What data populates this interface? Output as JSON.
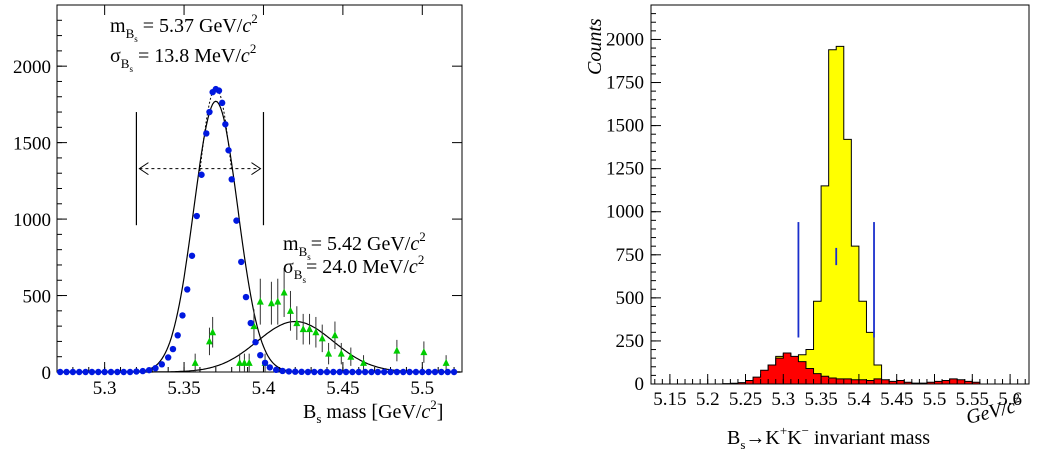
{
  "chart_data": [
    {
      "type": "scatter",
      "xlabel": {
        "prefix": "B",
        "sub": "s",
        "rest": " mass [GeV/",
        "unit_italic": "c",
        "sup": "2",
        "close": "]"
      },
      "xlim": [
        5.27,
        5.525
      ],
      "ylim": [
        0,
        2400
      ],
      "xticks": [
        5.3,
        5.35,
        5.4,
        5.45,
        5.5
      ],
      "xtick_labels": [
        "5.3",
        "5.35",
        "5.4",
        "5.45",
        "5.5"
      ],
      "yticks": [
        0,
        500,
        1000,
        1500,
        2000
      ],
      "ytick_labels": [
        "0",
        "500",
        "1000",
        "1500",
        "2000"
      ],
      "annotations": [
        {
          "name": "m",
          "sub": "B",
          "subsub": "s",
          "text": " =   5.37 GeV/",
          "unit_italic": "c",
          "sup": "2"
        },
        {
          "name": "σ",
          "sub": "B",
          "subsub": "s",
          "text": " =  13.8 MeV/",
          "unit_italic": "c",
          "sup": "2"
        },
        {
          "name": "m",
          "sub": "B",
          "subsub": "s",
          "text": "=  5.42 GeV/",
          "unit_italic": "c",
          "sup": "2"
        },
        {
          "name": "σ",
          "sub": "B",
          "subsub": "s",
          "text": "=  24.0 MeV/",
          "unit_italic": "c",
          "sup": "2"
        }
      ],
      "series": [
        {
          "color": "#0018e0",
          "marker": "circle",
          "x": [
            5.272,
            5.276,
            5.28,
            5.284,
            5.288,
            5.292,
            5.296,
            5.3,
            5.304,
            5.308,
            5.312,
            5.316,
            5.32,
            5.324,
            5.328,
            5.332,
            5.336,
            5.34,
            5.343,
            5.346,
            5.349,
            5.352,
            5.355,
            5.358,
            5.361,
            5.364,
            5.366,
            5.368,
            5.37,
            5.372,
            5.374,
            5.376,
            5.378,
            5.38,
            5.383,
            5.386,
            5.389,
            5.392,
            5.395,
            5.398,
            5.401,
            5.404,
            5.408,
            5.412,
            5.416,
            5.42,
            5.424,
            5.428,
            5.432,
            5.436,
            5.44,
            5.444,
            5.448,
            5.452,
            5.456,
            5.46,
            5.464,
            5.468,
            5.472,
            5.476,
            5.48,
            5.484,
            5.488,
            5.492,
            5.496,
            5.5,
            5.504,
            5.508,
            5.512,
            5.516,
            5.52
          ],
          "y": [
            0,
            0,
            0,
            0,
            0,
            0,
            0,
            0,
            0,
            0,
            0,
            0,
            3,
            6,
            12,
            25,
            50,
            95,
            150,
            240,
            370,
            540,
            760,
            1020,
            1290,
            1560,
            1700,
            1830,
            1850,
            1840,
            1760,
            1620,
            1450,
            1260,
            990,
            720,
            490,
            320,
            195,
            110,
            60,
            30,
            14,
            7,
            4,
            2,
            1,
            0,
            0,
            0,
            0,
            0,
            0,
            0,
            0,
            0,
            0,
            0,
            0,
            0,
            0,
            0,
            0,
            0,
            0,
            0,
            0,
            0,
            0,
            0,
            0
          ]
        },
        {
          "color": "#00cc00",
          "marker": "triangle",
          "x": [
            5.357,
            5.366,
            5.368,
            5.385,
            5.388,
            5.391,
            5.394,
            5.398,
            5.401,
            5.405,
            5.409,
            5.413,
            5.417,
            5.421,
            5.425,
            5.429,
            5.433,
            5.437,
            5.441,
            5.445,
            5.449,
            5.455,
            5.463,
            5.484,
            5.501,
            5.515
          ],
          "y": [
            60,
            200,
            260,
            60,
            60,
            60,
            300,
            460,
            60,
            450,
            460,
            520,
            400,
            320,
            280,
            280,
            260,
            220,
            120,
            240,
            120,
            100,
            60,
            140,
            130,
            60
          ],
          "yerr": [
            60,
            90,
            100,
            60,
            60,
            60,
            110,
            150,
            60,
            140,
            150,
            160,
            130,
            110,
            100,
            100,
            100,
            90,
            70,
            90,
            70,
            60,
            50,
            70,
            70,
            50
          ]
        }
      ],
      "fits": [
        {
          "mean": 5.37,
          "sigma": 0.0138,
          "amplitude": 1770
        },
        {
          "mean": 5.42,
          "sigma": 0.024,
          "amplitude": 330
        }
      ],
      "range_x": [
        5.32,
        5.4
      ]
    },
    {
      "type": "bar",
      "ylabel": "Counts",
      "xlabel_unit": {
        "text": "GeV/",
        "unit_italic": "c",
        "sup": "2"
      },
      "xlabel": {
        "prefix": "B",
        "sub": "s",
        "arrow": "→",
        "k1": "K",
        "sup1": "+",
        "k2": "K",
        "sup2": "−",
        "rest": " invariant mass"
      },
      "xlim": [
        5.125,
        5.625
      ],
      "ylim": [
        0,
        2200
      ],
      "xticks": [
        5.15,
        5.2,
        5.25,
        5.3,
        5.35,
        5.4,
        5.45,
        5.5,
        5.55,
        5.6
      ],
      "xtick_labels": [
        "5.15",
        "5.2",
        "5.25",
        "5.3",
        "5.35",
        "5.4",
        "5.45",
        "5.5",
        "5.55",
        "5.6"
      ],
      "yticks": [
        0,
        250,
        500,
        750,
        1000,
        1250,
        1500,
        1750,
        2000
      ],
      "ytick_labels": [
        "0",
        "250",
        "500",
        "750",
        "1000",
        "1250",
        "1500",
        "1750",
        "2000"
      ],
      "bin_edges": [
        5.25,
        5.26,
        5.27,
        5.28,
        5.29,
        5.3,
        5.31,
        5.32,
        5.33,
        5.34,
        5.35,
        5.36,
        5.37,
        5.38,
        5.39,
        5.4,
        5.41,
        5.42,
        5.43
      ],
      "series": [
        {
          "name": "signal",
          "color": "#ffff00",
          "values": [
            10,
            25,
            55,
            110,
            160,
            175,
            150,
            170,
            200,
            480,
            1150,
            1940,
            1960,
            1420,
            800,
            480,
            300,
            110
          ]
        },
        {
          "name": "background",
          "color": "#ff0000",
          "bin_edges": [
            5.22,
            5.23,
            5.24,
            5.25,
            5.26,
            5.27,
            5.28,
            5.29,
            5.3,
            5.31,
            5.32,
            5.33,
            5.34,
            5.35,
            5.36,
            5.37,
            5.38,
            5.39,
            5.4,
            5.41,
            5.42,
            5.43,
            5.44,
            5.45,
            5.46,
            5.47,
            5.48,
            5.49,
            5.5,
            5.51,
            5.52,
            5.53,
            5.54,
            5.55,
            5.56
          ],
          "values": [
            2,
            4,
            8,
            20,
            40,
            80,
            110,
            150,
            180,
            160,
            130,
            90,
            60,
            45,
            35,
            30,
            30,
            25,
            25,
            20,
            30,
            25,
            15,
            20,
            10,
            5,
            5,
            10,
            15,
            20,
            30,
            25,
            15,
            10
          ]
        }
      ],
      "markers": [
        {
          "x": 5.32,
          "y_low": 270,
          "y_high": 940
        },
        {
          "x": 5.37,
          "y_low": 690,
          "y_high": 790
        },
        {
          "x": 5.42,
          "y_low": 270,
          "y_high": 940
        }
      ],
      "marker_color": "#1a2fcc"
    }
  ]
}
